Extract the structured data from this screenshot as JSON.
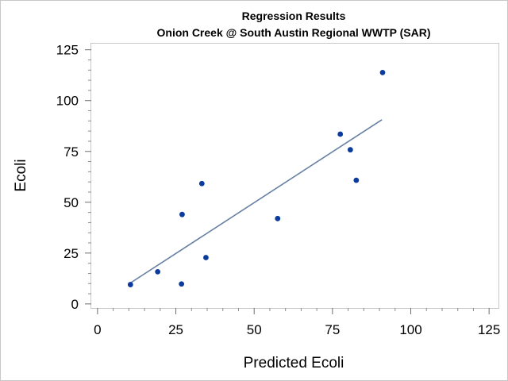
{
  "chart_data": {
    "type": "scatter",
    "title": "Regression Results",
    "subtitle": "Onion Creek @ South Austin Regional WWTP (SAR)",
    "xlabel": "Predicted Ecoli",
    "ylabel": "Ecoli",
    "xlim": [
      -2,
      128
    ],
    "ylim": [
      -2,
      128
    ],
    "x_ticks": [
      0,
      25,
      50,
      75,
      100,
      125
    ],
    "y_ticks": [
      0,
      25,
      50,
      75,
      100,
      125
    ],
    "x_tick_labels": [
      "0",
      "25",
      "50",
      "75",
      "100",
      "125"
    ],
    "y_tick_labels": [
      "0",
      "25",
      "50",
      "75",
      "100",
      "125"
    ],
    "grid": false,
    "series": [
      {
        "type": "scatter",
        "color": "#0b3b9c",
        "points": [
          {
            "x": 10.5,
            "y": 9.5
          },
          {
            "x": 19.2,
            "y": 15.8
          },
          {
            "x": 26.8,
            "y": 9.8
          },
          {
            "x": 27.0,
            "y": 44.0
          },
          {
            "x": 33.3,
            "y": 59.2
          },
          {
            "x": 34.6,
            "y": 22.8
          },
          {
            "x": 57.5,
            "y": 42.0
          },
          {
            "x": 77.5,
            "y": 83.5
          },
          {
            "x": 80.7,
            "y": 75.8
          },
          {
            "x": 82.6,
            "y": 60.8
          },
          {
            "x": 91.0,
            "y": 113.8
          }
        ]
      },
      {
        "type": "line",
        "color": "#6680a3",
        "points": [
          {
            "x": 10.2,
            "y": 10.0
          },
          {
            "x": 90.8,
            "y": 90.6
          }
        ]
      }
    ]
  }
}
